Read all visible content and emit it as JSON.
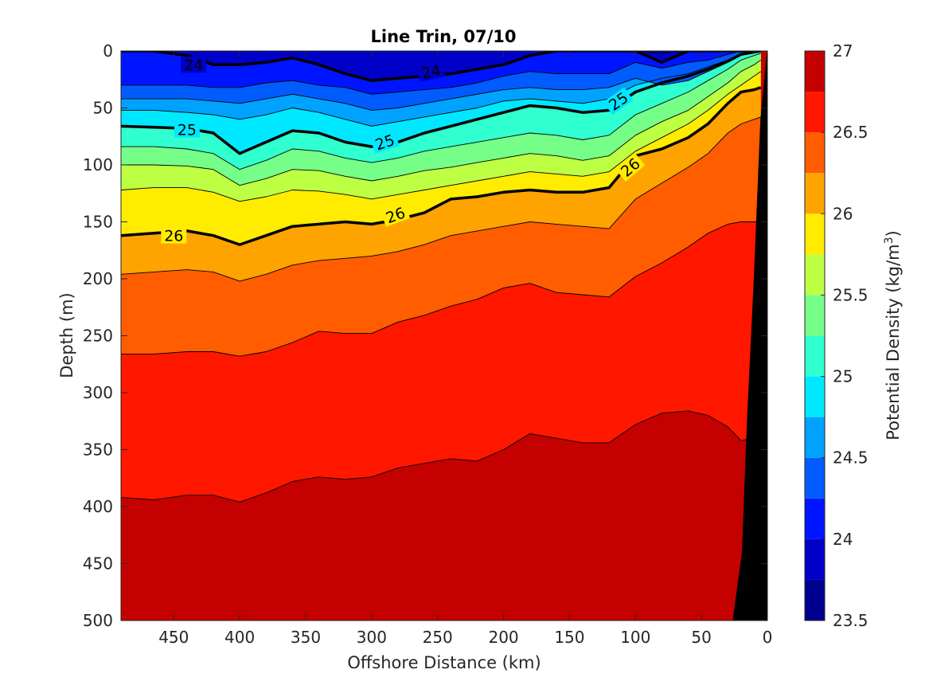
{
  "chart_data": {
    "type": "contour",
    "title": "Line Trin, 07/10",
    "xlabel": "Offshore Distance (km)",
    "ylabel": "Depth (m)",
    "colorbar_label": "Potential Density (kg/m",
    "colorbar_label_sup": "3",
    "colorbar_label_end": ")",
    "xlim": [
      490,
      0
    ],
    "x_reversed": true,
    "ylim": [
      0,
      500
    ],
    "y_reversed": true,
    "xticks": [
      450,
      400,
      350,
      300,
      250,
      200,
      150,
      100,
      50,
      0
    ],
    "yticks": [
      0,
      50,
      100,
      150,
      200,
      250,
      300,
      350,
      400,
      450,
      500
    ],
    "x_tick_labels": [
      "450",
      "400",
      "350",
      "300",
      "250",
      "200",
      "150",
      "100",
      "50",
      "0"
    ],
    "y_tick_labels": [
      "0",
      "50",
      "100",
      "150",
      "200",
      "250",
      "300",
      "350",
      "400",
      "450",
      "500"
    ],
    "colorbar_range": [
      23.5,
      27
    ],
    "colorbar_ticks": [
      23.5,
      24,
      24.5,
      25,
      25.5,
      26,
      26.5,
      27
    ],
    "colorbar_tick_labels": [
      "23.5",
      "24",
      "24.5",
      "25",
      "25.5",
      "26",
      "26.5",
      "27"
    ],
    "level_step": 0.25,
    "levels": [
      23.5,
      23.75,
      24,
      24.25,
      24.5,
      24.75,
      25,
      25.25,
      25.5,
      25.75,
      26,
      26.25,
      26.5,
      26.75,
      27
    ],
    "colors": [
      "#00008f",
      "#0000c8",
      "#0015ff",
      "#005cff",
      "#00a2ff",
      "#00e8ff",
      "#30ffcf",
      "#76ff88",
      "#bcff43",
      "#ffec00",
      "#ffa300",
      "#ff5d00",
      "#ff1700",
      "#c40000"
    ],
    "distance_km": [
      490,
      465,
      440,
      420,
      400,
      380,
      360,
      340,
      320,
      300,
      280,
      260,
      240,
      220,
      200,
      180,
      160,
      140,
      120,
      100,
      80,
      60,
      45,
      30,
      20,
      10,
      5
    ],
    "isopycnal_depths_m": [
      {
        "level": 23.75,
        "depths": [
          0,
          0,
          0,
          0,
          0,
          0,
          0,
          0,
          0,
          0,
          0,
          0,
          0,
          0,
          0,
          0,
          0,
          0,
          0,
          0,
          2,
          0,
          0,
          0,
          0,
          0,
          0
        ]
      },
      {
        "level": 24.0,
        "depths": [
          0,
          0,
          4,
          12,
          12,
          10,
          6,
          12,
          20,
          26,
          24,
          22,
          20,
          16,
          12,
          4,
          0,
          0,
          0,
          0,
          10,
          0,
          0,
          0,
          0,
          0,
          0
        ]
      },
      {
        "level": 24.25,
        "depths": [
          30,
          30,
          30,
          32,
          32,
          28,
          26,
          30,
          32,
          38,
          36,
          34,
          32,
          28,
          22,
          18,
          20,
          20,
          20,
          10,
          15,
          10,
          8,
          3,
          0,
          0,
          0
        ]
      },
      {
        "level": 24.5,
        "depths": [
          42,
          42,
          42,
          44,
          46,
          42,
          38,
          42,
          46,
          52,
          50,
          46,
          42,
          38,
          34,
          32,
          34,
          34,
          32,
          24,
          30,
          26,
          18,
          10,
          3,
          1,
          0
        ]
      },
      {
        "level": 24.75,
        "depths": [
          52,
          52,
          54,
          56,
          60,
          56,
          50,
          54,
          60,
          66,
          62,
          58,
          54,
          50,
          44,
          42,
          44,
          46,
          42,
          30,
          24,
          20,
          14,
          8,
          2,
          1,
          0
        ]
      },
      {
        "level": 25.0,
        "depths": [
          66,
          67,
          68,
          72,
          90,
          80,
          70,
          72,
          80,
          84,
          80,
          72,
          66,
          60,
          54,
          48,
          50,
          54,
          52,
          36,
          28,
          22,
          16,
          9,
          3,
          1,
          0
        ]
      },
      {
        "level": 25.25,
        "depths": [
          84,
          84,
          86,
          90,
          104,
          96,
          86,
          88,
          94,
          98,
          94,
          88,
          84,
          80,
          76,
          72,
          74,
          78,
          74,
          56,
          46,
          36,
          26,
          16,
          8,
          4,
          2
        ]
      },
      {
        "level": 25.5,
        "depths": [
          100,
          100,
          101,
          104,
          118,
          112,
          104,
          105,
          110,
          114,
          110,
          105,
          102,
          98,
          94,
          90,
          92,
          96,
          92,
          74,
          62,
          52,
          40,
          28,
          18,
          12,
          8
        ]
      },
      {
        "level": 25.75,
        "depths": [
          122,
          120,
          120,
          124,
          132,
          128,
          122,
          123,
          126,
          130,
          126,
          122,
          118,
          114,
          110,
          106,
          108,
          110,
          106,
          88,
          76,
          64,
          52,
          38,
          30,
          22,
          18
        ]
      },
      {
        "level": 26.0,
        "depths": [
          162,
          160,
          158,
          162,
          170,
          162,
          154,
          152,
          150,
          152,
          148,
          142,
          130,
          128,
          124,
          122,
          124,
          124,
          120,
          92,
          86,
          76,
          64,
          46,
          36,
          34,
          32
        ]
      },
      {
        "level": 26.25,
        "depths": [
          196,
          194,
          192,
          194,
          202,
          196,
          188,
          184,
          182,
          180,
          176,
          170,
          162,
          158,
          154,
          150,
          152,
          154,
          156,
          130,
          116,
          102,
          90,
          72,
          64,
          60,
          58
        ]
      },
      {
        "level": 26.5,
        "depths": [
          266,
          266,
          264,
          264,
          268,
          264,
          256,
          246,
          248,
          248,
          238,
          232,
          224,
          218,
          208,
          204,
          212,
          214,
          216,
          198,
          186,
          172,
          160,
          152,
          150,
          150,
          150
        ]
      },
      {
        "level": 26.75,
        "depths": [
          392,
          394,
          390,
          390,
          396,
          388,
          378,
          374,
          376,
          374,
          366,
          362,
          358,
          360,
          350,
          336,
          340,
          344,
          344,
          328,
          318,
          316,
          320,
          330,
          342,
          340,
          340
        ]
      }
    ],
    "highlighted_levels": [
      24,
      25,
      26
    ],
    "contour_labels": [
      {
        "text": "24",
        "x": 435,
        "y": 12,
        "angle": 0
      },
      {
        "text": "24",
        "x": 255,
        "y": 18,
        "angle": -12
      },
      {
        "text": "25",
        "x": 440,
        "y": 69,
        "angle": 0
      },
      {
        "text": "25",
        "x": 290,
        "y": 80,
        "angle": -18
      },
      {
        "text": "25",
        "x": 113,
        "y": 44,
        "angle": -35
      },
      {
        "text": "26",
        "x": 450,
        "y": 162,
        "angle": 0
      },
      {
        "text": "26",
        "x": 282,
        "y": 144,
        "angle": -20
      },
      {
        "text": "26",
        "x": 104,
        "y": 102,
        "angle": -40
      }
    ],
    "bathymetry_bottom_depth": [
      {
        "x": 0,
        "y": 0
      },
      {
        "x": 5,
        "y": 60
      },
      {
        "x": 10,
        "y": 200
      },
      {
        "x": 15,
        "y": 320
      },
      {
        "x": 19,
        "y": 440
      },
      {
        "x": 26,
        "y": 500
      }
    ],
    "grid": false,
    "legend": "colorbar-right"
  }
}
